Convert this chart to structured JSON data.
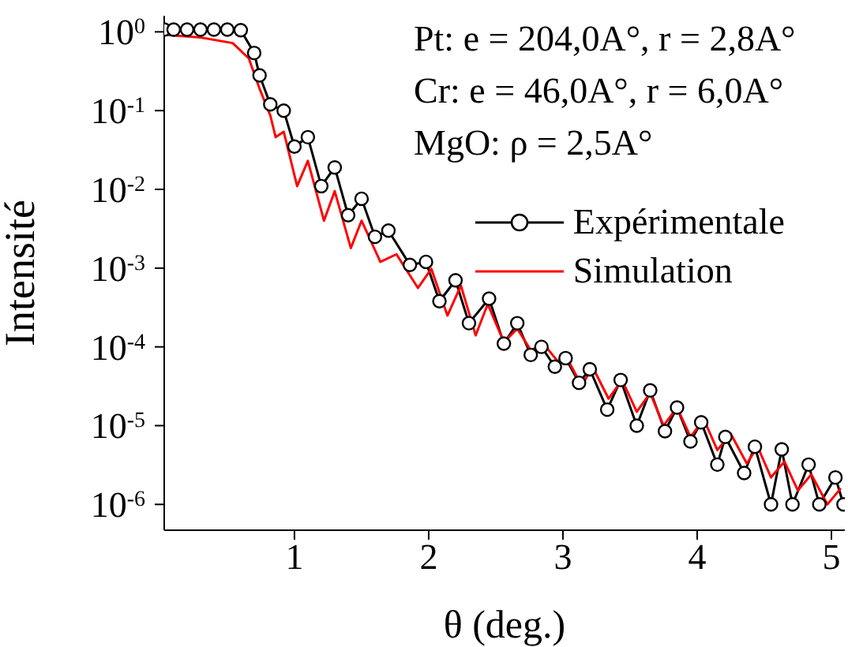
{
  "chart_data": {
    "type": "line",
    "xlabel": "θ (deg.)",
    "ylabel": "Intensité",
    "log": "y",
    "xlim": [
      0.03,
      5.1
    ],
    "xticks": [
      1,
      2,
      3,
      4,
      5
    ],
    "ylim": [
      4.7e-07,
      1.6
    ],
    "yticks": [
      {
        "value": 1,
        "label": "10$^{0}$"
      },
      {
        "value": 0.1,
        "label": "10$^{-1}$"
      },
      {
        "value": 0.01,
        "label": "10$^{-2}$"
      },
      {
        "value": 0.001,
        "label": "10$^{-3}$"
      },
      {
        "value": 0.0001,
        "label": "10$^{-4}$"
      },
      {
        "value": 1e-05,
        "label": "10$^{-5}$"
      },
      {
        "value": 1e-06,
        "label": "10$^{-6}$"
      }
    ],
    "legend": "right",
    "annotations": [
      "Pt: e = 204,0A°, r = 2,8A°",
      "Cr: e = 46,0A°, r = 6,0A°",
      "MgO: ρ = 2,5A°"
    ],
    "series": [
      {
        "name": "Expérimentale",
        "color": "#000000",
        "marker": "circle",
        "x": [
          0.03,
          0.1,
          0.2,
          0.3,
          0.4,
          0.5,
          0.6,
          0.7,
          0.74,
          0.82,
          0.92,
          1.0,
          1.1,
          1.2,
          1.3,
          1.4,
          1.5,
          1.6,
          1.7,
          1.86,
          1.98,
          2.08,
          2.2,
          2.3,
          2.45,
          2.56,
          2.66,
          2.76,
          2.84,
          2.94,
          3.02,
          3.12,
          3.2,
          3.33,
          3.43,
          3.55,
          3.65,
          3.76,
          3.85,
          3.95,
          4.03,
          4.15,
          4.21,
          4.35,
          4.43,
          4.55,
          4.63,
          4.71,
          4.83,
          4.91,
          5.03,
          5.09
        ],
        "values": [
          1.07,
          1.07,
          1.07,
          1.07,
          1.07,
          1.07,
          1.05,
          0.54,
          0.28,
          0.12,
          0.1,
          0.035,
          0.046,
          0.011,
          0.019,
          0.0047,
          0.0076,
          0.0025,
          0.003,
          0.0011,
          0.0012,
          0.00038,
          0.0007,
          0.0002,
          0.00041,
          0.00011,
          0.0002,
          7.9e-05,
          0.0001,
          5.6e-05,
          7.2e-05,
          3.5e-05,
          5.2e-05,
          1.6e-05,
          3.8e-05,
          1e-05,
          2.8e-05,
          8.5e-06,
          1.7e-05,
          6.3e-06,
          1.1e-05,
          3.2e-06,
          7.2e-06,
          2.5e-06,
          5.4e-06,
          1e-06,
          5e-06,
          1e-06,
          3.2e-06,
          1e-06,
          2.2e-06,
          1e-06
        ]
      },
      {
        "name": "Simulation",
        "color": "#ff0000",
        "marker": "none",
        "x": [
          0.03,
          0.3,
          0.54,
          0.66,
          0.74,
          0.82,
          0.86,
          0.92,
          1.02,
          1.1,
          1.22,
          1.3,
          1.42,
          1.5,
          1.64,
          1.76,
          1.92,
          2.02,
          2.14,
          2.24,
          2.35,
          2.44,
          2.56,
          2.66,
          2.76,
          2.86,
          2.96,
          3.02,
          3.14,
          3.22,
          3.34,
          3.44,
          3.55,
          3.65,
          3.75,
          3.85,
          3.95,
          4.05,
          4.15,
          4.25,
          4.37,
          4.45,
          4.55,
          4.65,
          4.75,
          4.85,
          4.97,
          5.07
        ],
        "values": [
          0.92,
          0.85,
          0.72,
          0.46,
          0.19,
          0.087,
          0.046,
          0.054,
          0.011,
          0.023,
          0.004,
          0.0095,
          0.0018,
          0.004,
          0.0012,
          0.0015,
          0.00056,
          0.00098,
          0.00025,
          0.0006,
          0.00014,
          0.00035,
          0.000115,
          0.00017,
          9.1e-05,
          0.000107,
          6.6e-05,
          7.8e-05,
          3.2e-05,
          5.6e-05,
          2.2e-05,
          3.8e-05,
          1.5e-05,
          2.6e-05,
          1e-05,
          1.7e-05,
          7.2e-06,
          1.2e-05,
          4.9e-06,
          7.9e-06,
          3.3e-06,
          5.4e-06,
          2.2e-06,
          3.5e-06,
          1.5e-06,
          2.4e-06,
          1e-06,
          1.6e-06
        ]
      }
    ]
  }
}
